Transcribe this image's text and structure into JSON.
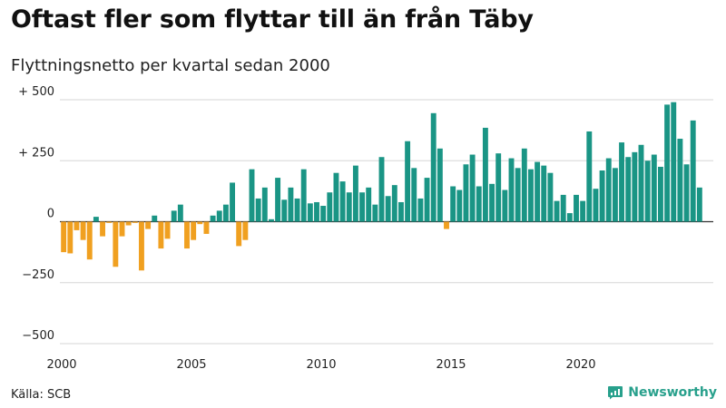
{
  "title": "Oftast fler som flyttar till än från Täby",
  "subtitle": "Flyttningsnetto per kvartal sedan 2000",
  "source": "Källa: SCB",
  "brand": "Newsworthy",
  "colors": {
    "positive": "#1a9585",
    "negative": "#f0a020",
    "grid": "#d6d6d6",
    "axis": "#333333",
    "brand": "#28a08c"
  },
  "chart_data": {
    "type": "bar",
    "title": "Oftast fler som flyttar till än från Täby",
    "subtitle": "Flyttningsnetto per kvartal sedan 2000",
    "xlabel": "",
    "ylabel": "",
    "ylim": [
      -500,
      500
    ],
    "yticks": [
      {
        "value": 500,
        "label": "+ 500"
      },
      {
        "value": 250,
        "label": "+ 250"
      },
      {
        "value": 0,
        "label": "0"
      },
      {
        "value": -250,
        "label": "−250"
      },
      {
        "value": -500,
        "label": "−500"
      }
    ],
    "xticks": [
      {
        "year": 2000,
        "label": "2000"
      },
      {
        "year": 2005,
        "label": "2005"
      },
      {
        "year": 2010,
        "label": "2010"
      },
      {
        "year": 2015,
        "label": "2015"
      },
      {
        "year": 2020,
        "label": "2020"
      }
    ],
    "start_year": 2000,
    "periods_per_year": 4,
    "grid": true,
    "legend": "none",
    "values": [
      -125,
      -130,
      -35,
      -75,
      -155,
      20,
      -60,
      -5,
      -185,
      -60,
      -15,
      -5,
      -200,
      -30,
      25,
      -110,
      -70,
      45,
      70,
      -110,
      -75,
      -10,
      -50,
      25,
      45,
      70,
      160,
      -100,
      -75,
      215,
      95,
      140,
      10,
      180,
      90,
      140,
      95,
      215,
      75,
      80,
      65,
      120,
      200,
      165,
      120,
      230,
      120,
      140,
      70,
      265,
      105,
      150,
      80,
      330,
      220,
      95,
      180,
      445,
      300,
      -30,
      145,
      130,
      235,
      275,
      145,
      385,
      155,
      280,
      130,
      260,
      220,
      300,
      215,
      245,
      230,
      200,
      85,
      110,
      35,
      110,
      85,
      370,
      135,
      210,
      260,
      220,
      325,
      265,
      285,
      315,
      250,
      275,
      225,
      480,
      490,
      340,
      235,
      415,
      140
    ]
  }
}
